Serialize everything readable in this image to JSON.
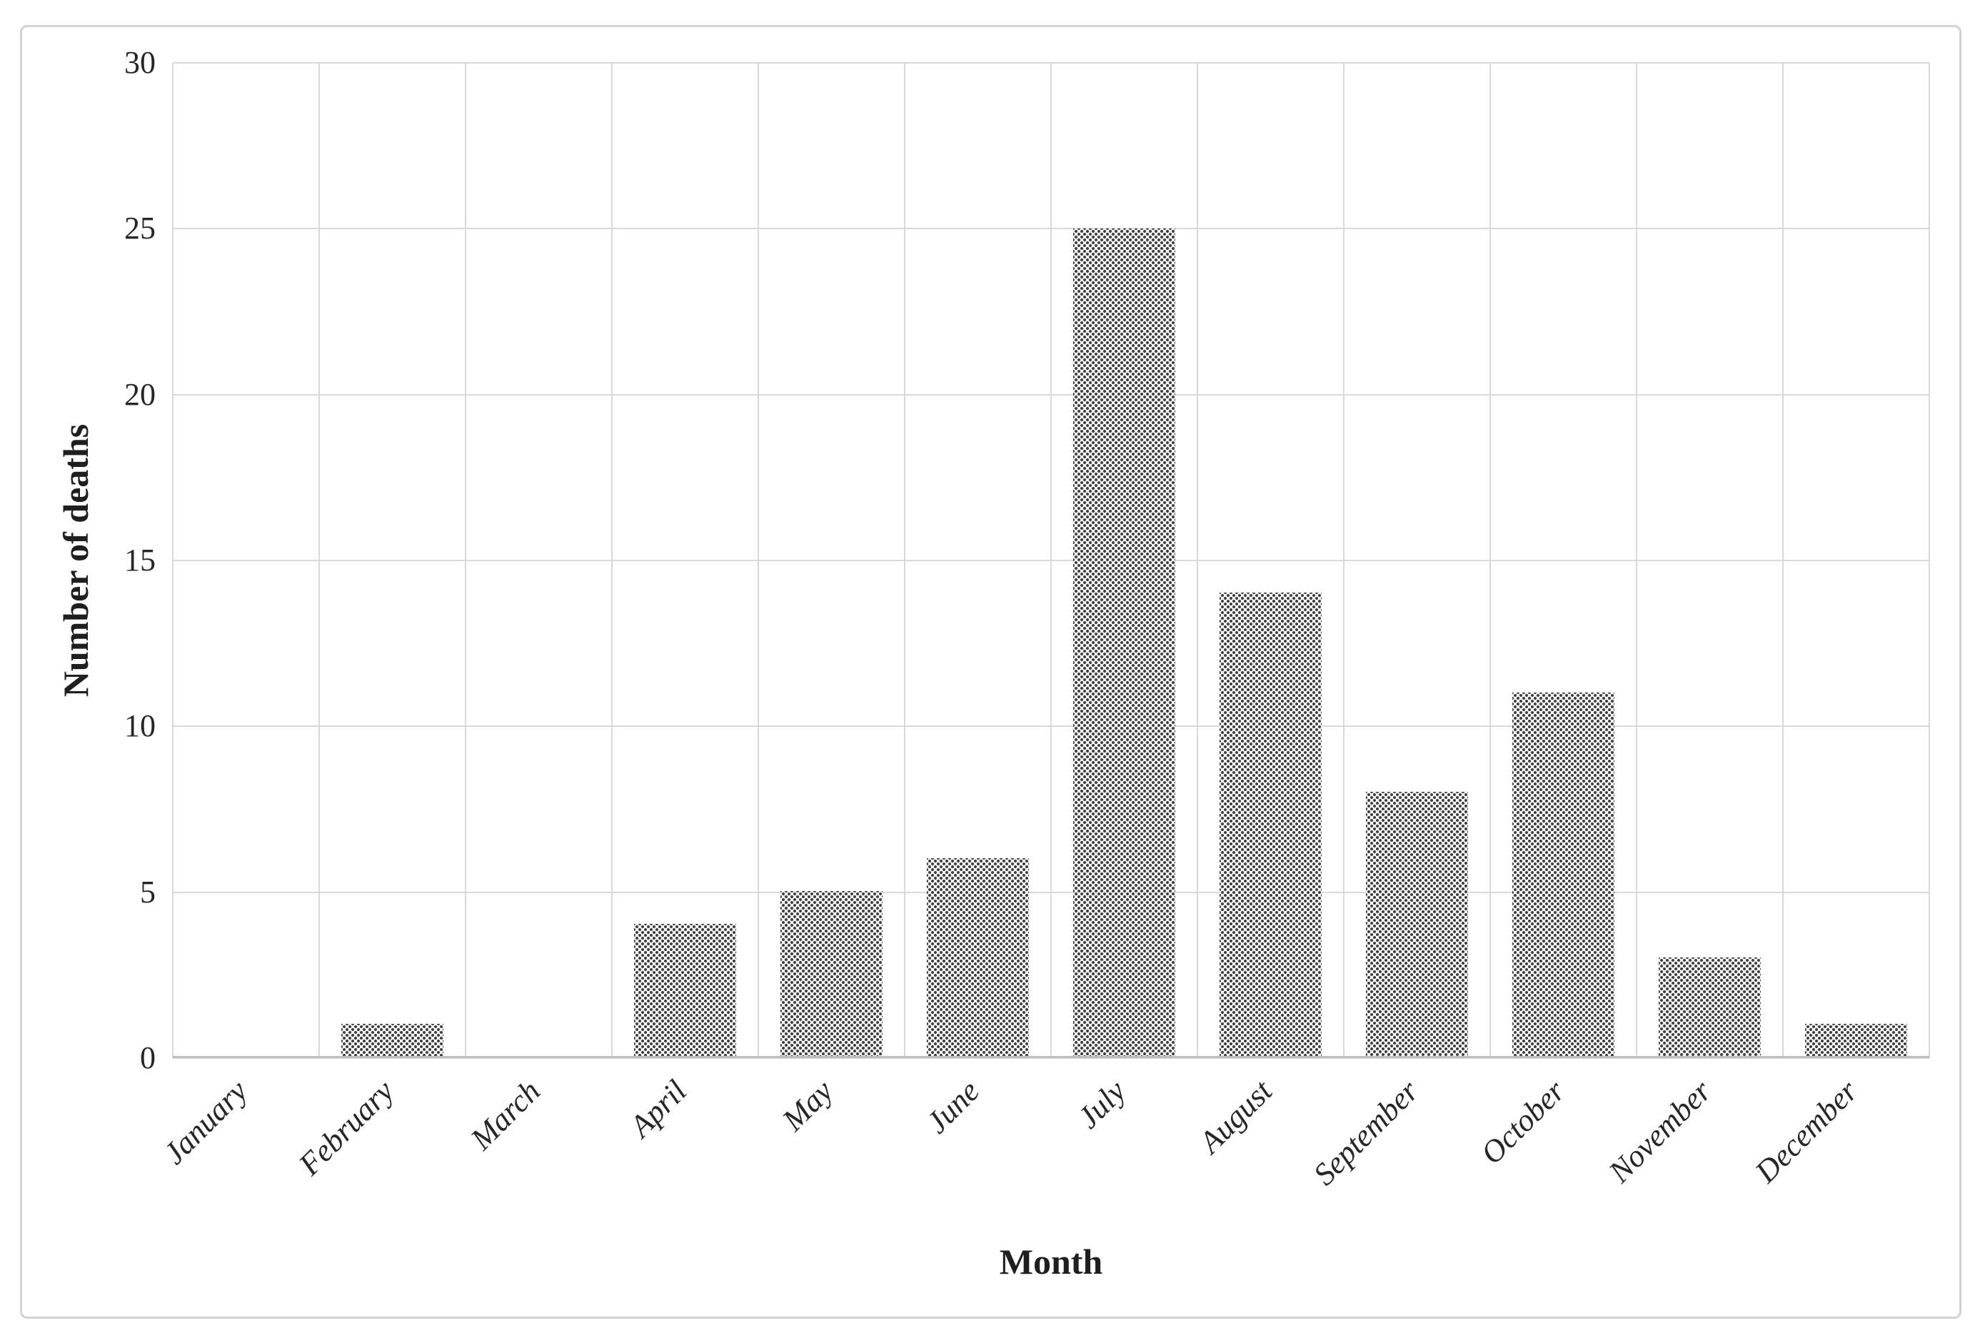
{
  "chart_data": {
    "type": "bar",
    "title": "",
    "categories": [
      "January",
      "February",
      "March",
      "April",
      "May",
      "June",
      "July",
      "August",
      "September",
      "October",
      "November",
      "December"
    ],
    "values": [
      0,
      1,
      0,
      4,
      5,
      6,
      25,
      14,
      8,
      11,
      3,
      1
    ],
    "xlabel": "Month",
    "ylabel": "Number of deaths",
    "ylim": [
      0,
      30
    ],
    "yticks": [
      0,
      5,
      10,
      15,
      20,
      25,
      30
    ],
    "grid": "horizontal and vertical gridlines, boxed plot area",
    "legend": "none",
    "bar_fill": "white with dark stippled dot pattern"
  },
  "style": {
    "grid_color": "#d9d9d9",
    "axis_line_color": "#bfbfbf",
    "dot_pattern_color": "#3c3c3c",
    "text_color": "#262626",
    "frame_border_color": "#d2d2d2",
    "background_color": "#ffffff"
  }
}
